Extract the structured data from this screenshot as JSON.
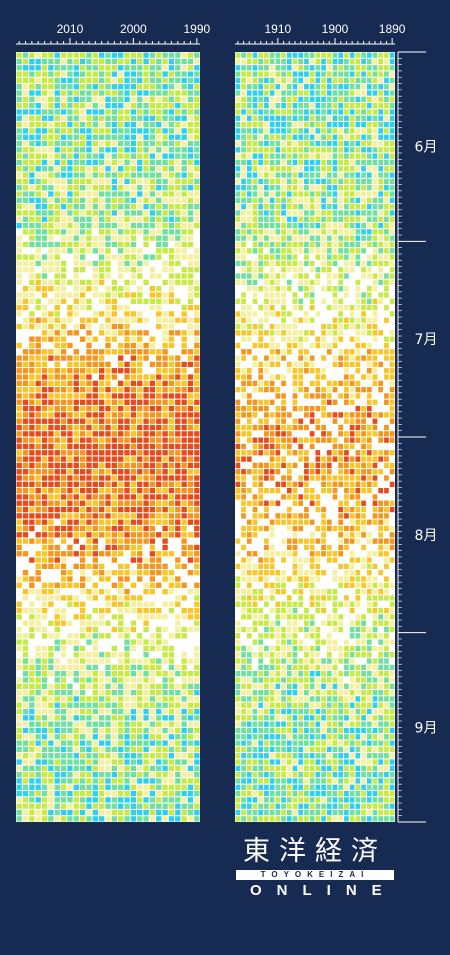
{
  "chart_data": [
    {
      "type": "heatmap",
      "panel": "left",
      "x_direction": "descending",
      "x_ticks": [
        {
          "label": "2010",
          "year": 2010
        },
        {
          "label": "2000",
          "year": 2000
        },
        {
          "label": "1990",
          "year": 1990
        }
      ],
      "x_range": [
        2018,
        1990
      ],
      "columns": 29,
      "rows": 122,
      "y_months": [
        "6月",
        "7月",
        "8月",
        "9月"
      ],
      "color_scale": [
        "#2fd0ee",
        "#6fe0a0",
        "#c8ea46",
        "#f4f0a0",
        "#ffffff",
        "#f9c62a",
        "#f5951e",
        "#e84a1c"
      ],
      "summary": "Daily values Jun–Sep, warm colours dominate mid-July to mid-August"
    },
    {
      "type": "heatmap",
      "panel": "right",
      "x_direction": "descending",
      "x_ticks": [
        {
          "label": "1910",
          "year": 1910
        },
        {
          "label": "1900",
          "year": 1900
        },
        {
          "label": "1890",
          "year": 1890
        }
      ],
      "x_range": [
        1917,
        1890
      ],
      "columns": 28,
      "rows": 122,
      "y_months": [
        "6月",
        "7月",
        "8月",
        "9月"
      ],
      "color_scale": [
        "#2fd0ee",
        "#6fe0a0",
        "#c8ea46",
        "#f4f0a0",
        "#ffffff",
        "#f9c62a",
        "#f5951e",
        "#e84a1c"
      ]
    }
  ],
  "month_labels": [
    "6月",
    "7月",
    "8月",
    "9月"
  ],
  "logo": {
    "jp": "東洋経済",
    "band": "TOYOKEIZAI",
    "en": "ONLINE"
  }
}
